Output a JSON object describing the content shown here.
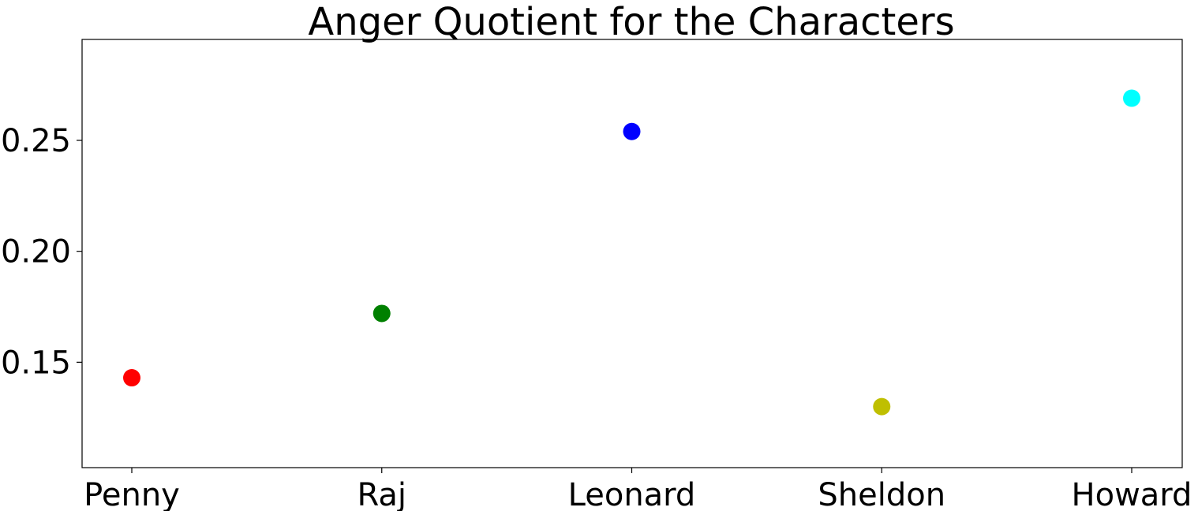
{
  "chart_data": {
    "type": "scatter",
    "title": "Anger Quotient for the Characters",
    "xlabel": "",
    "ylabel": "",
    "categories": [
      "Penny",
      "Raj",
      "Leonard",
      "Sheldon",
      "Howard"
    ],
    "values": [
      0.143,
      0.172,
      0.254,
      0.13,
      0.269
    ],
    "point_colors": [
      "#ff0000",
      "#008000",
      "#0000ff",
      "#bfbf00",
      "#00ffff"
    ],
    "yticks": [
      0.15,
      0.2,
      0.25
    ],
    "ytick_labels": [
      "0.15",
      "0.20",
      "0.25"
    ],
    "ylim": [
      0.1025,
      0.2955
    ],
    "grid": false,
    "legend": "none"
  }
}
